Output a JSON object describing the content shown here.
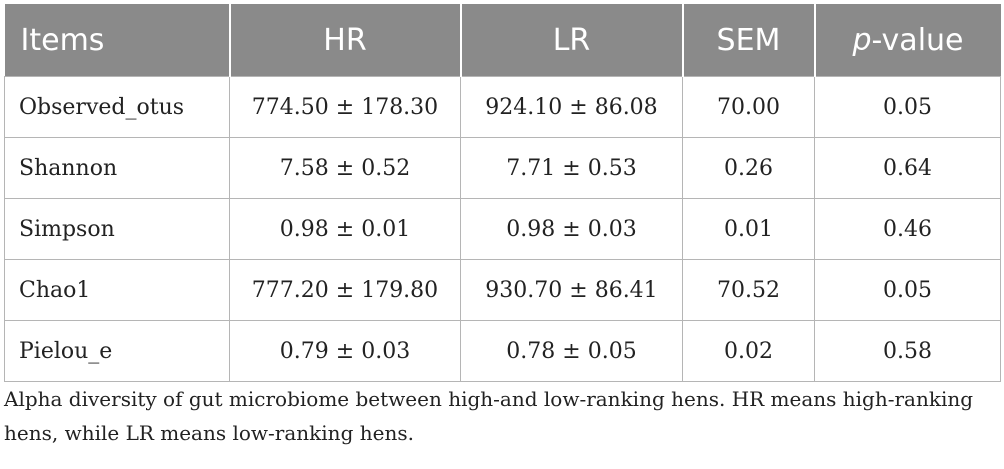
{
  "table": {
    "headers": {
      "items": "Items",
      "hr": "HR",
      "lr": "LR",
      "sem": "SEM",
      "p_italic": "p",
      "p_rest": "-value"
    },
    "rows": [
      {
        "item": "Observed_otus",
        "hr": "774.50 ± 178.30",
        "lr": "924.10 ± 86.08",
        "sem": "70.00",
        "p": "0.05"
      },
      {
        "item": "Shannon",
        "hr": "7.58 ± 0.52",
        "lr": "7.71 ± 0.53",
        "sem": "0.26",
        "p": "0.64"
      },
      {
        "item": "Simpson",
        "hr": "0.98 ± 0.01",
        "lr": "0.98 ± 0.03",
        "sem": "0.01",
        "p": "0.46"
      },
      {
        "item": "Chao1",
        "hr": "777.20 ± 179.80",
        "lr": "930.70 ± 86.41",
        "sem": "70.52",
        "p": "0.05"
      },
      {
        "item": "Pielou_e",
        "hr": "0.79 ± 0.03",
        "lr": "0.78 ± 0.05",
        "sem": "0.02",
        "p": "0.58"
      }
    ]
  },
  "caption": "Alpha diversity of gut microbiome between high-and low-ranking hens. HR means high-ranking hens, while LR means low-ranking hens.",
  "colors": {
    "header_bg": "#8a8a8a",
    "header_text": "#ffffff",
    "grid": "#b5b5b5"
  }
}
